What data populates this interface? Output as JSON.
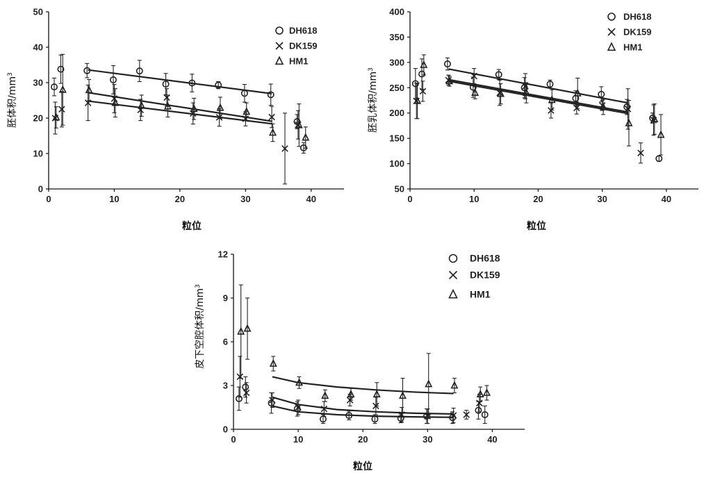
{
  "colors": {
    "ink": "#222222",
    "axis": "#111111",
    "background": "#ffffff"
  },
  "markers": {
    "DH618": "circle",
    "DK159": "cross",
    "HM1": "triangle"
  },
  "chart_data": [
    {
      "type": "scatter",
      "xlabel": "粒位",
      "ylabel": "胚体积/mm",
      "ylabel_sup": "3",
      "xlim": [
        0,
        45
      ],
      "ylim": [
        0,
        50
      ],
      "xticks": [
        0,
        10,
        20,
        30,
        40
      ],
      "yticks": [
        0,
        10,
        20,
        30,
        40,
        50
      ],
      "legend": "top-right",
      "grid": false,
      "series": [
        {
          "name": "DH618",
          "x": [
            1,
            2,
            6,
            10,
            14,
            18,
            22,
            26,
            30,
            34,
            38,
            39
          ],
          "y": [
            28.8,
            33.8,
            33.4,
            30.8,
            33.3,
            29.6,
            29.9,
            29.3,
            27.0,
            26.6,
            19.0,
            11.6
          ],
          "err": [
            2.5,
            4.0,
            2.0,
            4.0,
            3.0,
            3.0,
            2.5,
            1.0,
            2.5,
            3.0,
            2.0,
            1.5
          ],
          "trend": [
            [
              6,
              33.6
            ],
            [
              34,
              26.9
            ]
          ]
        },
        {
          "name": "DK159",
          "x": [
            1,
            2,
            6,
            10,
            14,
            18,
            22,
            26,
            30,
            34,
            36,
            38
          ],
          "y": [
            20.0,
            22.5,
            24.3,
            25.5,
            22.3,
            25.8,
            21.3,
            20.2,
            19.8,
            20.3,
            11.4,
            18.1
          ],
          "err": [
            4.5,
            5.0,
            5.0,
            4.0,
            3.0,
            2.5,
            3.0,
            2.5,
            2.0,
            3.0,
            10.0,
            4.0
          ],
          "trend": [
            [
              6,
              24.8
            ],
            [
              34,
              18.4
            ]
          ]
        },
        {
          "name": "HM1",
          "x": [
            1,
            2,
            6,
            10,
            14,
            18,
            22,
            26,
            30,
            34,
            38,
            39
          ],
          "y": [
            20.2,
            28.0,
            27.9,
            24.3,
            23.5,
            23.3,
            22.6,
            22.9,
            21.8,
            15.9,
            18.0,
            14.5
          ],
          "err": [
            3.0,
            10.0,
            3.0,
            4.0,
            3.0,
            3.0,
            3.0,
            3.0,
            2.5,
            2.5,
            6.0,
            3.0
          ],
          "trend": [
            [
              6,
              27.2
            ],
            [
              34,
              19.1
            ]
          ]
        }
      ]
    },
    {
      "type": "scatter",
      "xlabel": "粒位",
      "ylabel": "胚乳体积/mm",
      "ylabel_sup": "3",
      "xlim": [
        0,
        45
      ],
      "ylim": [
        50,
        400
      ],
      "xticks": [
        0,
        10,
        20,
        30,
        40
      ],
      "yticks": [
        50,
        100,
        150,
        200,
        250,
        300,
        350,
        400
      ],
      "legend": "top-right",
      "grid": false,
      "series": [
        {
          "name": "DH618",
          "x": [
            1,
            2,
            6,
            10,
            14,
            18,
            22,
            26,
            30,
            34,
            38,
            39
          ],
          "y": [
            258,
            277,
            297,
            251,
            276,
            250,
            257,
            229,
            237,
            212,
            190,
            110
          ],
          "err": [
            30,
            30,
            12,
            20,
            10,
            20,
            8,
            15,
            15,
            15,
            10,
            5
          ],
          "trend": [
            [
              6,
              287
            ],
            [
              34,
              220
            ]
          ]
        },
        {
          "name": "DK159",
          "x": [
            1,
            2,
            6,
            10,
            14,
            18,
            22,
            26,
            30,
            34,
            36,
            38
          ],
          "y": [
            224,
            243,
            265,
            273,
            240,
            253,
            205,
            210,
            215,
            208,
            121,
            186
          ],
          "err": [
            35,
            20,
            10,
            15,
            25,
            25,
            15,
            12,
            10,
            40,
            20,
            30
          ],
          "trend": [
            [
              6,
              266
            ],
            [
              34,
              202
            ]
          ]
        },
        {
          "name": "HM1",
          "x": [
            1,
            2,
            6,
            10,
            14,
            18,
            22,
            26,
            30,
            34,
            38,
            39
          ],
          "y": [
            224,
            295,
            263,
            240,
            238,
            240,
            226,
            239,
            212,
            180,
            188,
            157
          ],
          "err": [
            35,
            20,
            10,
            12,
            20,
            20,
            20,
            30,
            15,
            45,
            30,
            40
          ],
          "trend": [
            [
              6,
              263
            ],
            [
              34,
              199
            ]
          ]
        }
      ]
    },
    {
      "type": "scatter",
      "xlabel": "粒位",
      "ylabel": "皮下空腔体积/mm",
      "ylabel_sup": "3",
      "xlim": [
        0,
        45
      ],
      "ylim": [
        0,
        12
      ],
      "xticks": [
        0,
        10,
        20,
        30,
        40
      ],
      "yticks": [
        0,
        3,
        6,
        9,
        12
      ],
      "legend": "top-right",
      "grid": false,
      "series": [
        {
          "name": "DH618",
          "x": [
            1,
            2,
            6,
            10,
            14,
            18,
            22,
            26,
            30,
            34,
            38,
            39
          ],
          "y": [
            2.1,
            2.9,
            1.8,
            1.4,
            0.7,
            0.95,
            0.7,
            0.75,
            0.9,
            0.8,
            1.3,
            1.0
          ],
          "err": [
            0.8,
            0.7,
            0.7,
            0.5,
            0.3,
            0.3,
            0.3,
            0.3,
            0.5,
            0.4,
            0.6,
            0.6
          ],
          "trend": [
            [
              6,
              1.6
            ],
            [
              10,
              1.2
            ],
            [
              16,
              1.0
            ],
            [
              22,
              0.9
            ],
            [
              28,
              0.85
            ],
            [
              34,
              0.82
            ]
          ]
        },
        {
          "name": "DK159",
          "x": [
            1,
            2,
            6,
            10,
            14,
            18,
            22,
            26,
            30,
            34,
            36,
            38
          ],
          "y": [
            3.6,
            2.5,
            2.0,
            1.5,
            1.4,
            2.0,
            1.6,
            1.0,
            0.9,
            0.95,
            1.0,
            1.8
          ],
          "err": [
            1.4,
            0.7,
            0.5,
            0.5,
            0.5,
            0.4,
            0.6,
            0.5,
            0.5,
            0.5,
            0.3,
            0.6
          ],
          "trend": [
            [
              6,
              2.2
            ],
            [
              10,
              1.7
            ],
            [
              16,
              1.35
            ],
            [
              22,
              1.2
            ],
            [
              28,
              1.1
            ],
            [
              34,
              1.05
            ]
          ]
        },
        {
          "name": "HM1",
          "x": [
            1,
            2,
            6,
            10,
            14,
            18,
            22,
            26,
            30,
            34,
            38,
            39
          ],
          "y": [
            6.7,
            6.9,
            4.5,
            3.2,
            2.3,
            2.4,
            2.4,
            2.3,
            3.1,
            3.0,
            2.4,
            2.5
          ],
          "err": [
            3.2,
            2.1,
            0.5,
            0.4,
            0.4,
            0.4,
            0.8,
            1.2,
            2.1,
            0.5,
            0.5,
            0.5
          ],
          "trend": [
            [
              6,
              3.6
            ],
            [
              10,
              3.2
            ],
            [
              16,
              2.9
            ],
            [
              22,
              2.7
            ],
            [
              28,
              2.55
            ],
            [
              34,
              2.45
            ]
          ]
        }
      ]
    }
  ]
}
